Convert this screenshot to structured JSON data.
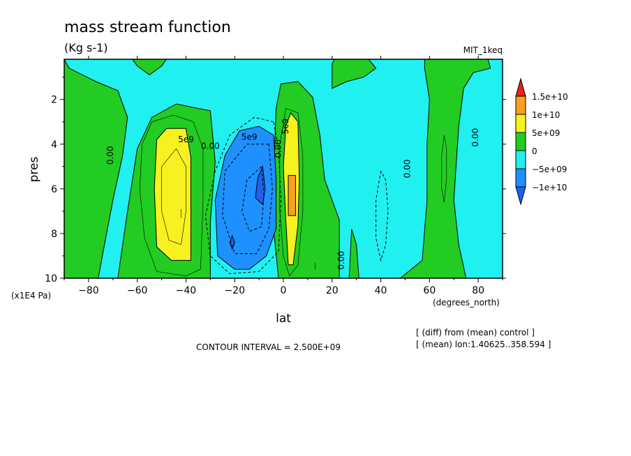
{
  "chart_data": {
    "type": "heatmap",
    "title": "mass stream function",
    "subtitle": "(Kg s-1)",
    "dataset_label": "MIT_1keq",
    "xlabel": "lat",
    "x_units": "(degrees_north)",
    "ylabel": "pres",
    "y_units": "(x1E4 Pa)",
    "xlim": [
      -90,
      90
    ],
    "ylim": [
      0.2,
      10
    ],
    "y_inverted": true,
    "x_ticks": [
      -80,
      -60,
      -40,
      -20,
      0,
      20,
      40,
      60,
      80
    ],
    "x_tick_labels": [
      "−80",
      "−60",
      "−40",
      "−20",
      "0",
      "20",
      "40",
      "60",
      "80"
    ],
    "y_ticks": [
      2,
      4,
      6,
      8,
      10
    ],
    "y_tick_labels": [
      "2",
      "4",
      "6",
      "8",
      "10"
    ],
    "contour_interval_text": "CONTOUR INTERVAL = 2.500E+09",
    "notes": [
      "[ (diff) from (mean) control ]",
      "[ (mean) lon:1.40625..358.594 ]"
    ],
    "colorbar": {
      "labels": [
        "1.5e+10",
        "1e+10",
        "5e+09",
        "0",
        "−5e+09",
        "−1e+10"
      ],
      "colors": [
        "#e8201e",
        "#f9a020",
        "#f7f21f",
        "#22cc22",
        "#20f0f0",
        "#1e90ff",
        "#1e60f0"
      ]
    },
    "contour_labels": [
      {
        "text": "0.00",
        "lat": -71,
        "pres": 4.5,
        "rotate": true
      },
      {
        "text": "5e9",
        "lat": -40,
        "pres": 3.8,
        "rotate": false
      },
      {
        "text": "0.00",
        "lat": -30,
        "pres": 4.1,
        "rotate": false
      },
      {
        "text": "5e9",
        "lat": -14,
        "pres": 3.7,
        "rotate": false
      },
      {
        "text": "0.00",
        "lat": -2,
        "pres": 4.2,
        "rotate": true
      },
      {
        "text": "5e9",
        "lat": 1,
        "pres": 3.2,
        "rotate": true
      },
      {
        "text": "0.00",
        "lat": 24,
        "pres": 9.2,
        "rotate": true
      },
      {
        "text": "0.00",
        "lat": 51,
        "pres": 5.1,
        "rotate": true
      },
      {
        "text": "0.00",
        "lat": 79,
        "pres": 3.7,
        "rotate": true
      }
    ],
    "regions": [
      {
        "level": "0 to 5e+09",
        "color": "#22cc22",
        "points": [
          [
            -90,
            0.2
          ],
          [
            -90,
            10
          ],
          [
            -76,
            10
          ],
          [
            -74,
            8.8
          ],
          [
            -70,
            6.5
          ],
          [
            -66,
            4.5
          ],
          [
            -64,
            2.8
          ],
          [
            -68,
            1.6
          ],
          [
            -77,
            1.2
          ],
          [
            -88,
            0.6
          ]
        ]
      },
      {
        "level": "0 to 5e+09",
        "color": "#22cc22",
        "points": [
          [
            -68,
            10
          ],
          [
            -64,
            7
          ],
          [
            -60,
            4.2
          ],
          [
            -54,
            2.8
          ],
          [
            -44,
            2.2
          ],
          [
            -35,
            2.4
          ],
          [
            -30,
            2.5
          ],
          [
            -28,
            4.8
          ],
          [
            -30,
            7.5
          ],
          [
            -30,
            10
          ]
        ]
      },
      {
        "level": "0 to 5e+09",
        "color": "#22cc22",
        "points": [
          [
            -2,
            10
          ],
          [
            -4,
            7.8
          ],
          [
            -4,
            5.5
          ],
          [
            -3,
            2.4
          ],
          [
            -1,
            1.3
          ],
          [
            6,
            1.2
          ],
          [
            12,
            1.9
          ],
          [
            15,
            3.6
          ],
          [
            17,
            5.6
          ],
          [
            23,
            7.4
          ],
          [
            23,
            10
          ]
        ]
      },
      {
        "level": "0 to 5e+09",
        "color": "#22cc22",
        "points": [
          [
            27,
            10
          ],
          [
            28,
            7.8
          ],
          [
            30,
            8.5
          ],
          [
            31,
            10
          ]
        ]
      },
      {
        "level": "0 to 5e+09",
        "color": "#22cc22",
        "points": [
          [
            20,
            0.4
          ],
          [
            20,
            1.5
          ],
          [
            26,
            1.2
          ],
          [
            33,
            1.0
          ],
          [
            38,
            0.6
          ],
          [
            35,
            0.2
          ],
          [
            21,
            0.2
          ]
        ]
      },
      {
        "level": "0 to 5e+09",
        "color": "#22cc22",
        "points": [
          [
            48,
            10
          ],
          [
            57,
            9.2
          ],
          [
            59,
            6.5
          ],
          [
            59,
            4
          ],
          [
            60,
            2
          ],
          [
            58,
            0.6
          ],
          [
            58,
            0.2
          ],
          [
            84,
            0.2
          ],
          [
            85,
            0.6
          ],
          [
            78,
            0.8
          ],
          [
            74,
            1.5
          ],
          [
            72,
            3.2
          ],
          [
            70,
            6.5
          ],
          [
            72,
            8.5
          ],
          [
            75,
            10
          ]
        ]
      },
      {
        "level": "0 to 5e+09",
        "color": "#22cc22",
        "points": [
          [
            -62,
            0.2
          ],
          [
            -60,
            0.5
          ],
          [
            -55,
            0.9
          ],
          [
            -50,
            0.5
          ],
          [
            -48,
            0.2
          ]
        ]
      },
      {
        "level": "5e+09 to 1e+10",
        "color": "#f7f21f",
        "points": [
          [
            -46,
            9.2
          ],
          [
            -52,
            8.6
          ],
          [
            -53,
            6
          ],
          [
            -52,
            3.8
          ],
          [
            -48,
            3.3
          ],
          [
            -40,
            3.3
          ],
          [
            -38,
            4.6
          ],
          [
            -38,
            7
          ],
          [
            -38,
            9.2
          ]
        ]
      },
      {
        "level": "5e+09 to 1e+10",
        "color": "#f7f21f",
        "points": [
          [
            2,
            9.4
          ],
          [
            1,
            7.4
          ],
          [
            0,
            5
          ],
          [
            1,
            3.2
          ],
          [
            3,
            2.6
          ],
          [
            6,
            3
          ],
          [
            6.5,
            5.6
          ],
          [
            6,
            7.6
          ],
          [
            4,
            9.4
          ]
        ]
      },
      {
        "level": "1e+10 to 1.5e+10",
        "color": "#f9a020",
        "points": [
          [
            2,
            7.2
          ],
          [
            2,
            5.4
          ],
          [
            5,
            5.4
          ],
          [
            5,
            7.2
          ]
        ]
      },
      {
        "level": "-5e+09 to 0",
        "color": "#1e90ff",
        "points": [
          [
            -20,
            9.6
          ],
          [
            -27,
            9.0
          ],
          [
            -28,
            6.5
          ],
          [
            -24,
            4.5
          ],
          [
            -18,
            3.4
          ],
          [
            -10,
            3.2
          ],
          [
            -4,
            3.6
          ],
          [
            -3,
            5.5
          ],
          [
            -3,
            7.8
          ],
          [
            -7,
            9.0
          ],
          [
            -14,
            9.6
          ]
        ]
      },
      {
        "level": "< -1e+10",
        "color": "#1e60f0",
        "points": [
          [
            -11.5,
            6.4
          ],
          [
            -10.5,
            5.5
          ],
          [
            -8.5,
            5.0
          ],
          [
            -7.5,
            6.0
          ],
          [
            -8.5,
            6.7
          ]
        ]
      },
      {
        "level": "< -1e+10",
        "color": "#1e60f0",
        "points": [
          [
            -22,
            8.4
          ],
          [
            -21,
            8.1
          ],
          [
            -20,
            8.4
          ],
          [
            -21,
            8.7
          ]
        ]
      }
    ],
    "contour_lines": [
      {
        "style": "thin",
        "points": [
          [
            -54,
            3.0
          ],
          [
            -58,
            4
          ],
          [
            -59,
            6
          ],
          [
            -57,
            8.2
          ],
          [
            -52,
            9.7
          ],
          [
            -40,
            9.9
          ],
          [
            -34,
            9.6
          ],
          [
            -33,
            6.5
          ],
          [
            -33,
            4.2
          ],
          [
            -37,
            3.0
          ],
          [
            -45,
            2.7
          ],
          [
            -54,
            3.0
          ]
        ]
      },
      {
        "style": "thin",
        "points": [
          [
            -44,
            4.2
          ],
          [
            -50,
            5
          ],
          [
            -50,
            7
          ],
          [
            -47,
            8.3
          ],
          [
            -42,
            8.5
          ],
          [
            -40,
            7
          ],
          [
            -40,
            5
          ],
          [
            -44,
            4.2
          ]
        ]
      },
      {
        "style": "dashed",
        "points": [
          [
            -4,
            3.0
          ],
          [
            -12,
            2.8
          ],
          [
            -22,
            3.6
          ],
          [
            -28,
            5.2
          ],
          [
            -32,
            7.2
          ],
          [
            -30,
            9.0
          ],
          [
            -22,
            9.8
          ],
          [
            -10,
            9.7
          ],
          [
            -2,
            8.8
          ],
          [
            -1,
            6.5
          ],
          [
            -2,
            4.2
          ],
          [
            -4,
            3.0
          ]
        ]
      },
      {
        "style": "dashed",
        "points": [
          [
            -6,
            4.0
          ],
          [
            -15,
            4.0
          ],
          [
            -24,
            5.2
          ],
          [
            -25,
            7.2
          ],
          [
            -20,
            8.9
          ],
          [
            -11,
            8.9
          ],
          [
            -6,
            7.8
          ],
          [
            -4.5,
            6
          ],
          [
            -6,
            4.0
          ]
        ]
      },
      {
        "style": "dashed",
        "points": [
          [
            -9,
            5.0
          ],
          [
            -15,
            5.6
          ],
          [
            -17,
            7.0
          ],
          [
            -14,
            7.9
          ],
          [
            -9,
            7.7
          ],
          [
            -8,
            6.3
          ],
          [
            -9,
            5.0
          ]
        ]
      },
      {
        "style": "thin",
        "points": [
          [
            1,
            2.4
          ],
          [
            -1.5,
            4
          ],
          [
            -1.5,
            7
          ],
          [
            0,
            9
          ],
          [
            2.5,
            9.9
          ],
          [
            6,
            9.4
          ],
          [
            8,
            7
          ],
          [
            8,
            4.5
          ],
          [
            6,
            2.6
          ],
          [
            1,
            2.4
          ]
        ]
      },
      {
        "style": "dashed",
        "points": [
          [
            40,
            5.2
          ],
          [
            38,
            6.5
          ],
          [
            38,
            8.2
          ],
          [
            40,
            9.2
          ],
          [
            42,
            8.5
          ],
          [
            43,
            7
          ],
          [
            42,
            5.6
          ],
          [
            40,
            5.2
          ]
        ]
      },
      {
        "style": "thin",
        "points": [
          [
            66,
            3.6
          ],
          [
            65,
            4.5
          ],
          [
            65,
            6
          ],
          [
            66,
            6.6
          ],
          [
            67,
            5.5
          ],
          [
            67,
            4.2
          ],
          [
            66,
            3.6
          ]
        ]
      },
      {
        "style": "thin",
        "points": [
          [
            13,
            9.3
          ],
          [
            13,
            9.6
          ]
        ]
      },
      {
        "style": "thin",
        "points": [
          [
            -42,
            6.9
          ],
          [
            -42,
            7.3
          ]
        ]
      }
    ]
  }
}
